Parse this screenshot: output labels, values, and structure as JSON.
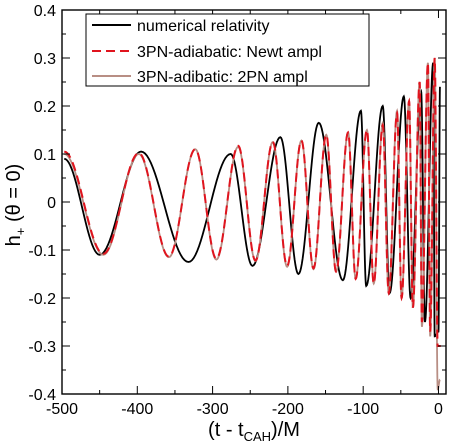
{
  "chart_data": {
    "type": "line",
    "title": "",
    "xlabel": {
      "main": "(t - t",
      "sub": "CAH",
      "tail": ")/M"
    },
    "ylabel": {
      "main": "h",
      "sub": "+",
      "tail": " (θ = 0)"
    },
    "xlim": [
      -500,
      10
    ],
    "ylim": [
      -0.4,
      0.4
    ],
    "xticks": [
      -500,
      -400,
      -300,
      -200,
      -100,
      0
    ],
    "xtick_labels": [
      "-500",
      "-400",
      "-300",
      "-200",
      "-100",
      "0"
    ],
    "yticks": [
      -0.4,
      -0.3,
      -0.2,
      -0.1,
      0,
      0.1,
      0.2,
      0.3,
      0.4
    ],
    "ytick_labels": [
      "-0.4",
      "-0.3",
      "-0.2",
      "-0.1",
      "0",
      "0.1",
      "0.2",
      "0.3",
      "0.4"
    ],
    "grid": false,
    "legend_position": "top-left",
    "series": [
      {
        "name": "numerical relativity",
        "color": "#000000",
        "dash": "solid",
        "x": [
          -497,
          -450,
          -395,
          -332,
          -276,
          -247,
          -210,
          -186,
          -159,
          -127,
          -103,
          -96,
          -74,
          -65,
          -46,
          -37,
          -23,
          -18,
          -7,
          -5,
          0,
          2
        ],
        "y": [
          0.09,
          -0.11,
          0.105,
          -0.125,
          0.1,
          -0.133,
          0.135,
          -0.15,
          0.165,
          -0.163,
          0.19,
          -0.175,
          0.2,
          -0.19,
          0.22,
          -0.2,
          0.23,
          -0.25,
          0.29,
          -0.28,
          -0.27,
          0.24
        ]
      },
      {
        "name": "3PN-adiabatic: Newt ampl",
        "color": "#e0141e",
        "dash": "dashed",
        "x": [
          -497,
          -445,
          -398,
          -358,
          -323,
          -295,
          -266,
          -243,
          -220,
          -201,
          -182,
          -166,
          -149,
          -136,
          -120,
          -110,
          -95,
          -86,
          -74,
          -66,
          -55,
          -49,
          -39,
          -34,
          -25,
          -22,
          -14,
          -11,
          -5,
          -1,
          3
        ],
        "y": [
          0.105,
          -0.108,
          0.102,
          -0.114,
          0.11,
          -0.118,
          0.117,
          -0.122,
          0.125,
          -0.133,
          0.128,
          -0.138,
          0.14,
          -0.145,
          0.145,
          -0.16,
          0.15,
          -0.17,
          0.16,
          -0.19,
          0.185,
          -0.2,
          0.21,
          -0.22,
          0.25,
          -0.25,
          0.29,
          -0.27,
          0.3,
          -0.3,
          -0.3
        ]
      },
      {
        "name": "3PN-adibatic: 2PN ampl",
        "color": "#b88e84",
        "dash": "solid",
        "x": [
          -497,
          -445,
          -398,
          -358,
          -323,
          -295,
          -266,
          -243,
          -220,
          -201,
          -182,
          -166,
          -149,
          -136,
          -120,
          -110,
          -95,
          -86,
          -74,
          -66,
          -55,
          -49,
          -39,
          -34,
          -25,
          -22,
          -14,
          -11,
          -5,
          -1,
          2
        ],
        "y": [
          0.1,
          -0.11,
          0.1,
          -0.115,
          0.11,
          -0.12,
          0.115,
          -0.123,
          0.125,
          -0.135,
          0.128,
          -0.14,
          0.14,
          -0.145,
          0.145,
          -0.16,
          0.15,
          -0.17,
          0.165,
          -0.19,
          0.19,
          -0.2,
          0.21,
          -0.22,
          0.25,
          -0.26,
          0.29,
          -0.28,
          0.3,
          -0.39,
          -0.37
        ]
      }
    ]
  }
}
